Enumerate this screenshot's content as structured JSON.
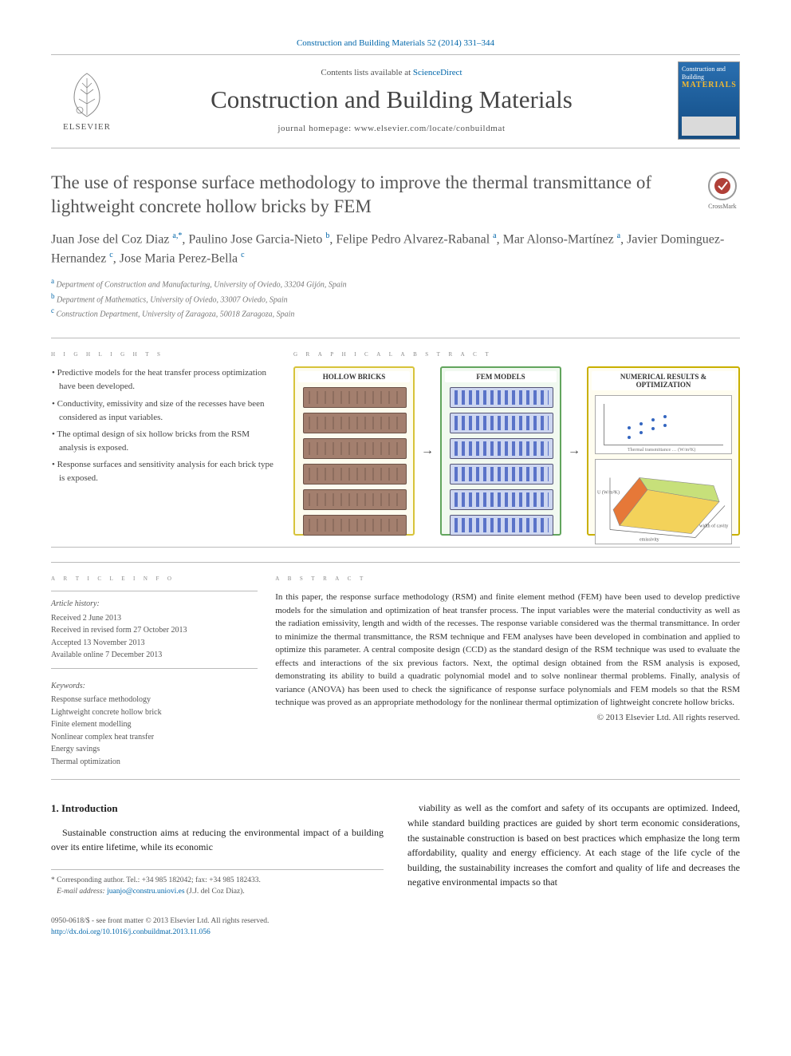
{
  "citation_line": "Construction and Building Materials 52 (2014) 331–344",
  "masthead": {
    "contents_prefix": "Contents lists available at ",
    "contents_link": "ScienceDirect",
    "journal_title": "Construction and Building Materials",
    "homepage_prefix": "journal homepage: ",
    "homepage_url": "www.elsevier.com/locate/conbuildmat",
    "publisher_word": "ELSEVIER",
    "cover_title": "Construction and Building",
    "cover_materials": "MATERIALS"
  },
  "crossmark_label": "CrossMark",
  "title": "The use of response surface methodology to improve the thermal transmittance of lightweight concrete hollow bricks by FEM",
  "authors_html": "Juan Jose del Coz Diaz <sup>a,*</sup>, Paulino Jose Garcia-Nieto <sup>b</sup>, Felipe Pedro Alvarez-Rabanal <sup>a</sup>, Mar Alonso-Martínez <sup>a</sup>, Javier Dominguez-Hernandez <sup>c</sup>, Jose Maria Perez-Bella <sup>c</sup>",
  "affiliations": [
    {
      "sup": "a",
      "text": "Department of Construction and Manufacturing, University of Oviedo, 33204 Gijón, Spain"
    },
    {
      "sup": "b",
      "text": "Department of Mathematics, University of Oviedo, 33007 Oviedo, Spain"
    },
    {
      "sup": "c",
      "text": "Construction Department, University of Zaragoza, 50018 Zaragoza, Spain"
    }
  ],
  "section_labels": {
    "highlights": "H I G H L I G H T S",
    "graphical_abstract": "G R A P H I C A L  A B S T R A C T",
    "article_info": "A R T I C L E  I N F O",
    "abstract": "A B S T R A C T"
  },
  "highlights": [
    "Predictive models for the heat transfer process optimization have been developed.",
    "Conductivity, emissivity and size of the recesses have been considered as input variables.",
    "The optimal design of six hollow bricks from the RSM analysis is exposed.",
    "Response surfaces and sensitivity analysis for each brick type is exposed."
  ],
  "graphical_abstract": {
    "panel1_title": "HOLLOW BRICKS",
    "panel2_title": "FEM MODELS",
    "panel3_title": "NUMERICAL RESULTS & OPTIMIZATION",
    "brick_count": 6,
    "fem_count": 6,
    "panel1_border": "#d7c33a",
    "panel2_border": "#62a55d",
    "panel3_border": "#c9b000",
    "brick_fill": "#a37f6e",
    "fem_fill": "#cdd6f0",
    "scatter_points": [
      {
        "x": 30,
        "y": 40
      },
      {
        "x": 45,
        "y": 35
      },
      {
        "x": 60,
        "y": 30
      },
      {
        "x": 75,
        "y": 26
      },
      {
        "x": 30,
        "y": 52
      },
      {
        "x": 45,
        "y": 46
      },
      {
        "x": 60,
        "y": 41
      },
      {
        "x": 75,
        "y": 37
      }
    ],
    "scatter_xlabel": "Thermal transmittance … (W/m²K)",
    "surface_xlabel": "emissivity",
    "surface_ylabel": "width of cavity",
    "surface_zlabel": "U (W/m²K)"
  },
  "article_info": {
    "history_label": "Article history:",
    "history": [
      "Received 2 June 2013",
      "Received in revised form 27 October 2013",
      "Accepted 13 November 2013",
      "Available online 7 December 2013"
    ],
    "keywords_label": "Keywords:",
    "keywords": [
      "Response surface methodology",
      "Lightweight concrete hollow brick",
      "Finite element modelling",
      "Nonlinear complex heat transfer",
      "Energy savings",
      "Thermal optimization"
    ]
  },
  "abstract_text": "In this paper, the response surface methodology (RSM) and finite element method (FEM) have been used to develop predictive models for the simulation and optimization of heat transfer process. The input variables were the material conductivity as well as the radiation emissivity, length and width of the recesses. The response variable considered was the thermal transmittance. In order to minimize the thermal transmittance, the RSM technique and FEM analyses have been developed in combination and applied to optimize this parameter. A central composite design (CCD) as the standard design of the RSM technique was used to evaluate the effects and interactions of the six previous factors. Next, the optimal design obtained from the RSM analysis is exposed, demonstrating its ability to build a quadratic polynomial model and to solve nonlinear thermal problems. Finally, analysis of variance (ANOVA) has been used to check the significance of response surface polynomials and FEM models so that the RSM technique was proved as an appropriate methodology for the nonlinear thermal optimization of lightweight concrete hollow bricks.",
  "abstract_copyright": "© 2013 Elsevier Ltd. All rights reserved.",
  "body": {
    "heading": "1. Introduction",
    "col1_p1": "Sustainable construction aims at reducing the environmental impact of a building over its entire lifetime, while its economic",
    "col2_p1": "viability as well as the comfort and safety of its occupants are optimized. Indeed, while standard building practices are guided by short term economic considerations, the sustainable construction is based on best practices which emphasize the long term affordability, quality and energy efficiency. At each stage of the life cycle of the building, the sustainability increases the comfort and quality of life and decreases the negative environmental impacts so that"
  },
  "corresponding": {
    "star": "*",
    "text": "Corresponding author. Tel.: +34 985 182042; fax: +34 985 182433.",
    "email_label": "E-mail address: ",
    "email": "juanjo@constru.uniovi.es",
    "email_tail": " (J.J. del Coz Diaz)."
  },
  "footer": {
    "issn_line": "0950-0618/$ - see front matter © 2013 Elsevier Ltd. All rights reserved.",
    "doi": "http://dx.doi.org/10.1016/j.conbuildmat.2013.11.056"
  }
}
